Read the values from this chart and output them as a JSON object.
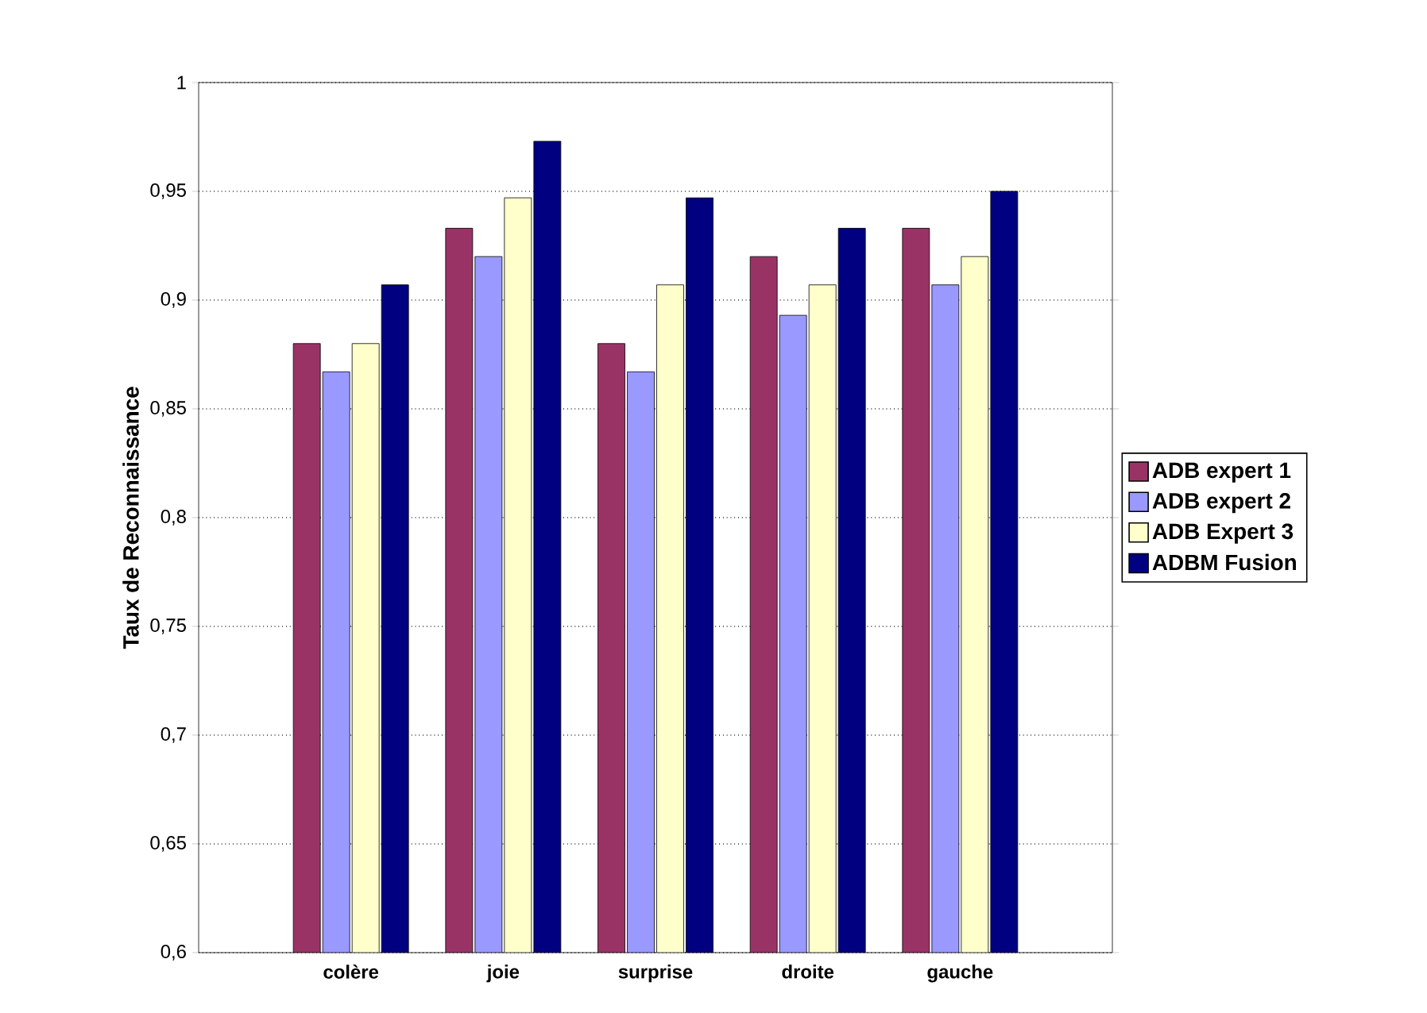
{
  "chart_data": {
    "type": "bar",
    "ylabel": "Taux de Reconnaissance",
    "categories": [
      "colère",
      "joie",
      "surprise",
      "droite",
      "gauche"
    ],
    "series": [
      {
        "name": "ADB expert 1",
        "color": "#993366",
        "values": [
          0.88,
          0.933,
          0.88,
          0.92,
          0.933
        ]
      },
      {
        "name": "ADB expert 2",
        "color": "#9999ff",
        "values": [
          0.867,
          0.92,
          0.867,
          0.893,
          0.907
        ]
      },
      {
        "name": "ADB Expert 3",
        "color": "#ffffcc",
        "values": [
          0.88,
          0.947,
          0.907,
          0.907,
          0.92
        ]
      },
      {
        "name": "ADBM Fusion",
        "color": "#000080",
        "values": [
          0.907,
          0.973,
          0.947,
          0.933,
          0.95
        ]
      }
    ],
    "ylim": [
      0.6,
      1
    ],
    "yticks": [
      {
        "value": 0.6,
        "label": "0,6"
      },
      {
        "value": 0.65,
        "label": "0,65"
      },
      {
        "value": 0.7,
        "label": "0,7"
      },
      {
        "value": 0.75,
        "label": "0,75"
      },
      {
        "value": 0.8,
        "label": "0,8"
      },
      {
        "value": 0.85,
        "label": "0,85"
      },
      {
        "value": 0.9,
        "label": "0,9"
      },
      {
        "value": 0.95,
        "label": "0,95"
      },
      {
        "value": 1,
        "label": "1"
      }
    ],
    "grid": "y",
    "line_style": "dotted",
    "legend": "right"
  }
}
